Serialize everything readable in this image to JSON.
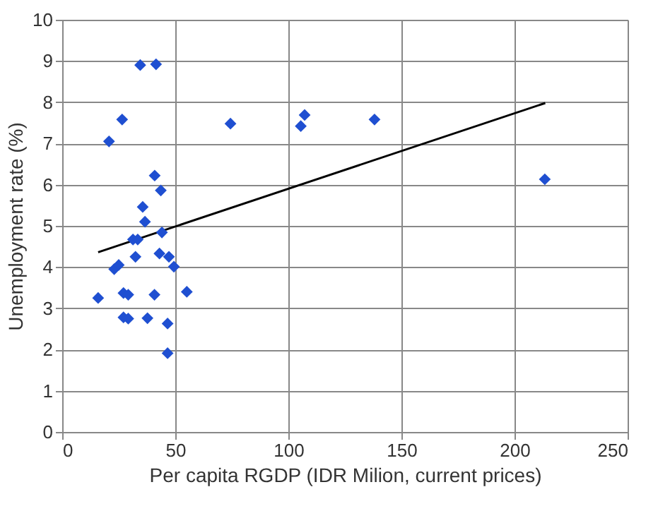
{
  "chart_data": {
    "type": "scatter",
    "xlabel": "Per capita RGDP (IDR Milion, current prices)",
    "ylabel": "Unemployment rate (%)",
    "xlim": [
      0,
      250
    ],
    "xticks": [
      0,
      50,
      100,
      150,
      200,
      250
    ],
    "ylim": [
      0,
      10
    ],
    "yticks": [
      0,
      1,
      2,
      3,
      4,
      5,
      6,
      7,
      8,
      9,
      10
    ],
    "grid": true,
    "legend": false,
    "series": [
      {
        "type": "scatter",
        "color": "#1f4fd1",
        "marker": "diamond",
        "x": [
          15.9,
          23,
          25,
          27.1,
          29.2,
          27.1,
          29.2,
          37.7,
          40.8,
          46.6,
          46.6,
          55.1,
          32.4,
          43.0,
          47.2,
          49.4,
          31.3,
          33.4,
          44.1,
          36.6,
          35.6,
          34.5,
          41.5,
          26.5,
          20.7,
          40.9,
          43.6,
          74.4,
          105.5,
          107.2,
          138.1,
          213.4
        ],
        "values": [
          3.25,
          3.95,
          4.05,
          3.37,
          3.33,
          2.78,
          2.75,
          2.76,
          3.33,
          2.63,
          1.91,
          3.4,
          4.25,
          4.33,
          4.25,
          4.01,
          4.67,
          4.67,
          4.84,
          5.1,
          5.46,
          8.9,
          8.92,
          7.58,
          7.05,
          6.22,
          5.86,
          7.48,
          7.42,
          7.69,
          7.58,
          6.13
        ]
      },
      {
        "type": "line",
        "color": "#000000",
        "marker": "none",
        "line_style": "solid",
        "x": [
          15.9,
          213.6
        ],
        "values": [
          4.36,
          7.98
        ]
      }
    ]
  }
}
